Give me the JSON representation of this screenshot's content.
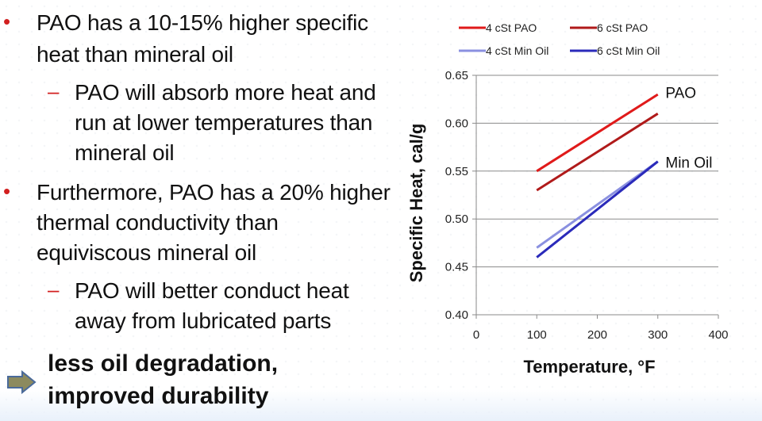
{
  "slide": {
    "bullets": [
      {
        "lines": [
          "PAO has a 10-15% higher specific",
          "heat than mineral oil"
        ],
        "sub": [
          {
            "lines": [
              "PAO will absorb more heat and",
              "run at lower temperatures than",
              "mineral oil"
            ]
          }
        ]
      },
      {
        "lines": [
          "Furthermore, PAO has a 20% higher",
          "thermal conductivity than",
          "equiviscous mineral oil"
        ],
        "sub": [
          {
            "lines": [
              "PAO will better conduct heat",
              "away from lubricated parts"
            ]
          }
        ]
      }
    ],
    "conclusion": [
      "less oil degradation,",
      "improved durability"
    ],
    "colors": {
      "bullet": "#d21f1f",
      "arrow_fill": "#8c8a5e",
      "arrow_stroke": "#4a6a9a"
    }
  },
  "chart_data": {
    "type": "line",
    "xlabel": "Temperature, °F",
    "ylabel": "Specific Heat, cal/g",
    "xlim": [
      0,
      400
    ],
    "ylim": [
      0.4,
      0.65
    ],
    "x_ticks": [
      "0",
      "100",
      "200",
      "300",
      "400"
    ],
    "y_ticks": [
      "0.40",
      "0.45",
      "0.50",
      "0.55",
      "0.60",
      "0.65"
    ],
    "grid": true,
    "legend_position": "top",
    "series": [
      {
        "name": "4 cSt PAO",
        "color": "#e01a1a",
        "x": [
          100,
          300
        ],
        "y": [
          0.55,
          0.63
        ]
      },
      {
        "name": "6 cSt PAO",
        "color": "#b01a1a",
        "x": [
          100,
          300
        ],
        "y": [
          0.53,
          0.61
        ]
      },
      {
        "name": "4 cSt Min Oil",
        "color": "#8a90e0",
        "x": [
          100,
          300
        ],
        "y": [
          0.47,
          0.56
        ]
      },
      {
        "name": "6 cSt Min Oil",
        "color": "#2a2aba",
        "x": [
          100,
          300
        ],
        "y": [
          0.46,
          0.56
        ]
      }
    ],
    "annotations": [
      {
        "text": "PAO",
        "x": 310,
        "y": 0.633
      },
      {
        "text": "Min Oil",
        "x": 310,
        "y": 0.56
      }
    ]
  }
}
